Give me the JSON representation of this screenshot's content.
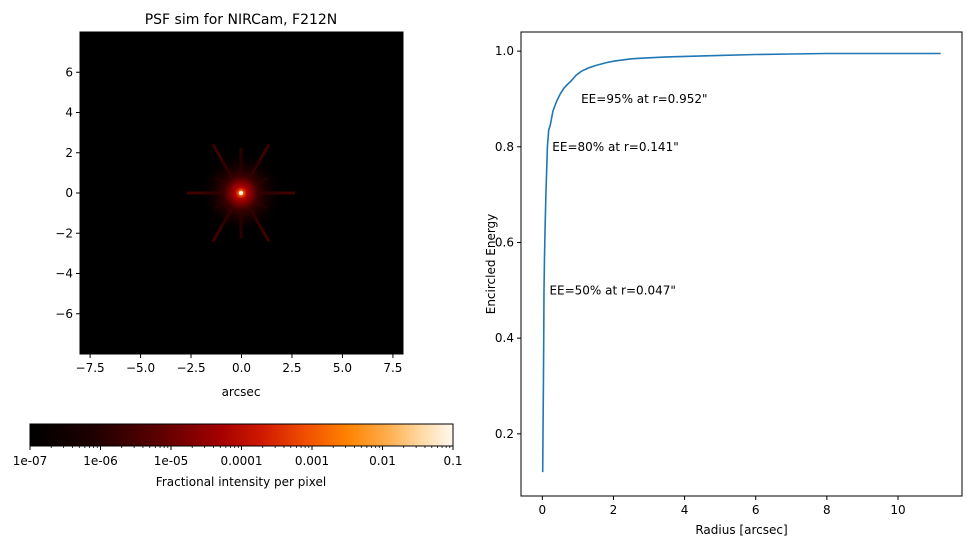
{
  "chart_data": [
    {
      "type": "heatmap",
      "title": "PSF sim for NIRCam, F212N",
      "xlabel": "arcsec",
      "ylabel": "",
      "xlim": [
        -8,
        8
      ],
      "ylim": [
        -8,
        8
      ],
      "xticks": [
        -7.5,
        -5.0,
        -2.5,
        0.0,
        2.5,
        5.0,
        7.5
      ],
      "xtick_labels": [
        "−7.5",
        "−5.0",
        "−2.5",
        "0.0",
        "2.5",
        "5.0",
        "7.5"
      ],
      "yticks": [
        6,
        4,
        2,
        0,
        -2,
        -4,
        -6
      ],
      "ytick_labels": [
        "6",
        "4",
        "2",
        "0",
        "−2",
        "−4",
        "−6"
      ],
      "colormap": "gist_heat",
      "colorbar": {
        "label": "Fractional intensity per pixel",
        "scale": "log",
        "range": [
          1e-07,
          0.1
        ],
        "ticks": [
          1e-07,
          1e-06,
          1e-05,
          0.0001,
          0.001,
          0.01,
          0.1
        ],
        "tick_labels": [
          "1e-07",
          "1e-06",
          "1e-05",
          "0.0001",
          "0.001",
          "0.01",
          "0.1"
        ],
        "placement": "bottom"
      }
    },
    {
      "type": "line",
      "xlabel": "Radius [arcsec]",
      "ylabel": "Encircled Energy",
      "xlim": [
        -0.6,
        11.8
      ],
      "ylim": [
        0.07,
        1.04
      ],
      "xticks": [
        0,
        2,
        4,
        6,
        8,
        10
      ],
      "xtick_labels": [
        "0",
        "2",
        "4",
        "6",
        "8",
        "10"
      ],
      "yticks": [
        0.2,
        0.4,
        0.6,
        0.8,
        1.0
      ],
      "ytick_labels": [
        "0.2",
        "0.4",
        "0.6",
        "0.8",
        "1.0"
      ],
      "line_color": "#1f77b4",
      "series": [
        {
          "name": "Encircled Energy",
          "x": [
            0.01,
            0.02,
            0.03,
            0.04,
            0.047,
            0.06,
            0.08,
            0.1,
            0.141,
            0.18,
            0.22,
            0.3,
            0.4,
            0.5,
            0.6,
            0.7,
            0.8,
            0.952,
            1.1,
            1.3,
            1.5,
            1.8,
            2.0,
            2.5,
            3.0,
            3.5,
            4.0,
            5.0,
            6.0,
            7.0,
            8.0,
            9.0,
            10.0,
            11.2
          ],
          "y": [
            0.12,
            0.2,
            0.3,
            0.42,
            0.5,
            0.57,
            0.64,
            0.7,
            0.8,
            0.835,
            0.845,
            0.875,
            0.895,
            0.91,
            0.922,
            0.93,
            0.937,
            0.95,
            0.958,
            0.965,
            0.97,
            0.976,
            0.979,
            0.984,
            0.986,
            0.988,
            0.989,
            0.991,
            0.993,
            0.994,
            0.995,
            0.995,
            0.995,
            0.995
          ]
        }
      ],
      "annotations": [
        {
          "text": "EE=50% at r=0.047\"",
          "x": 0.2,
          "y": 0.5
        },
        {
          "text": "EE=80% at r=0.141\"",
          "x": 0.28,
          "y": 0.8
        },
        {
          "text": "EE=95% at r=0.952\"",
          "x": 1.09,
          "y": 0.9
        }
      ]
    }
  ]
}
